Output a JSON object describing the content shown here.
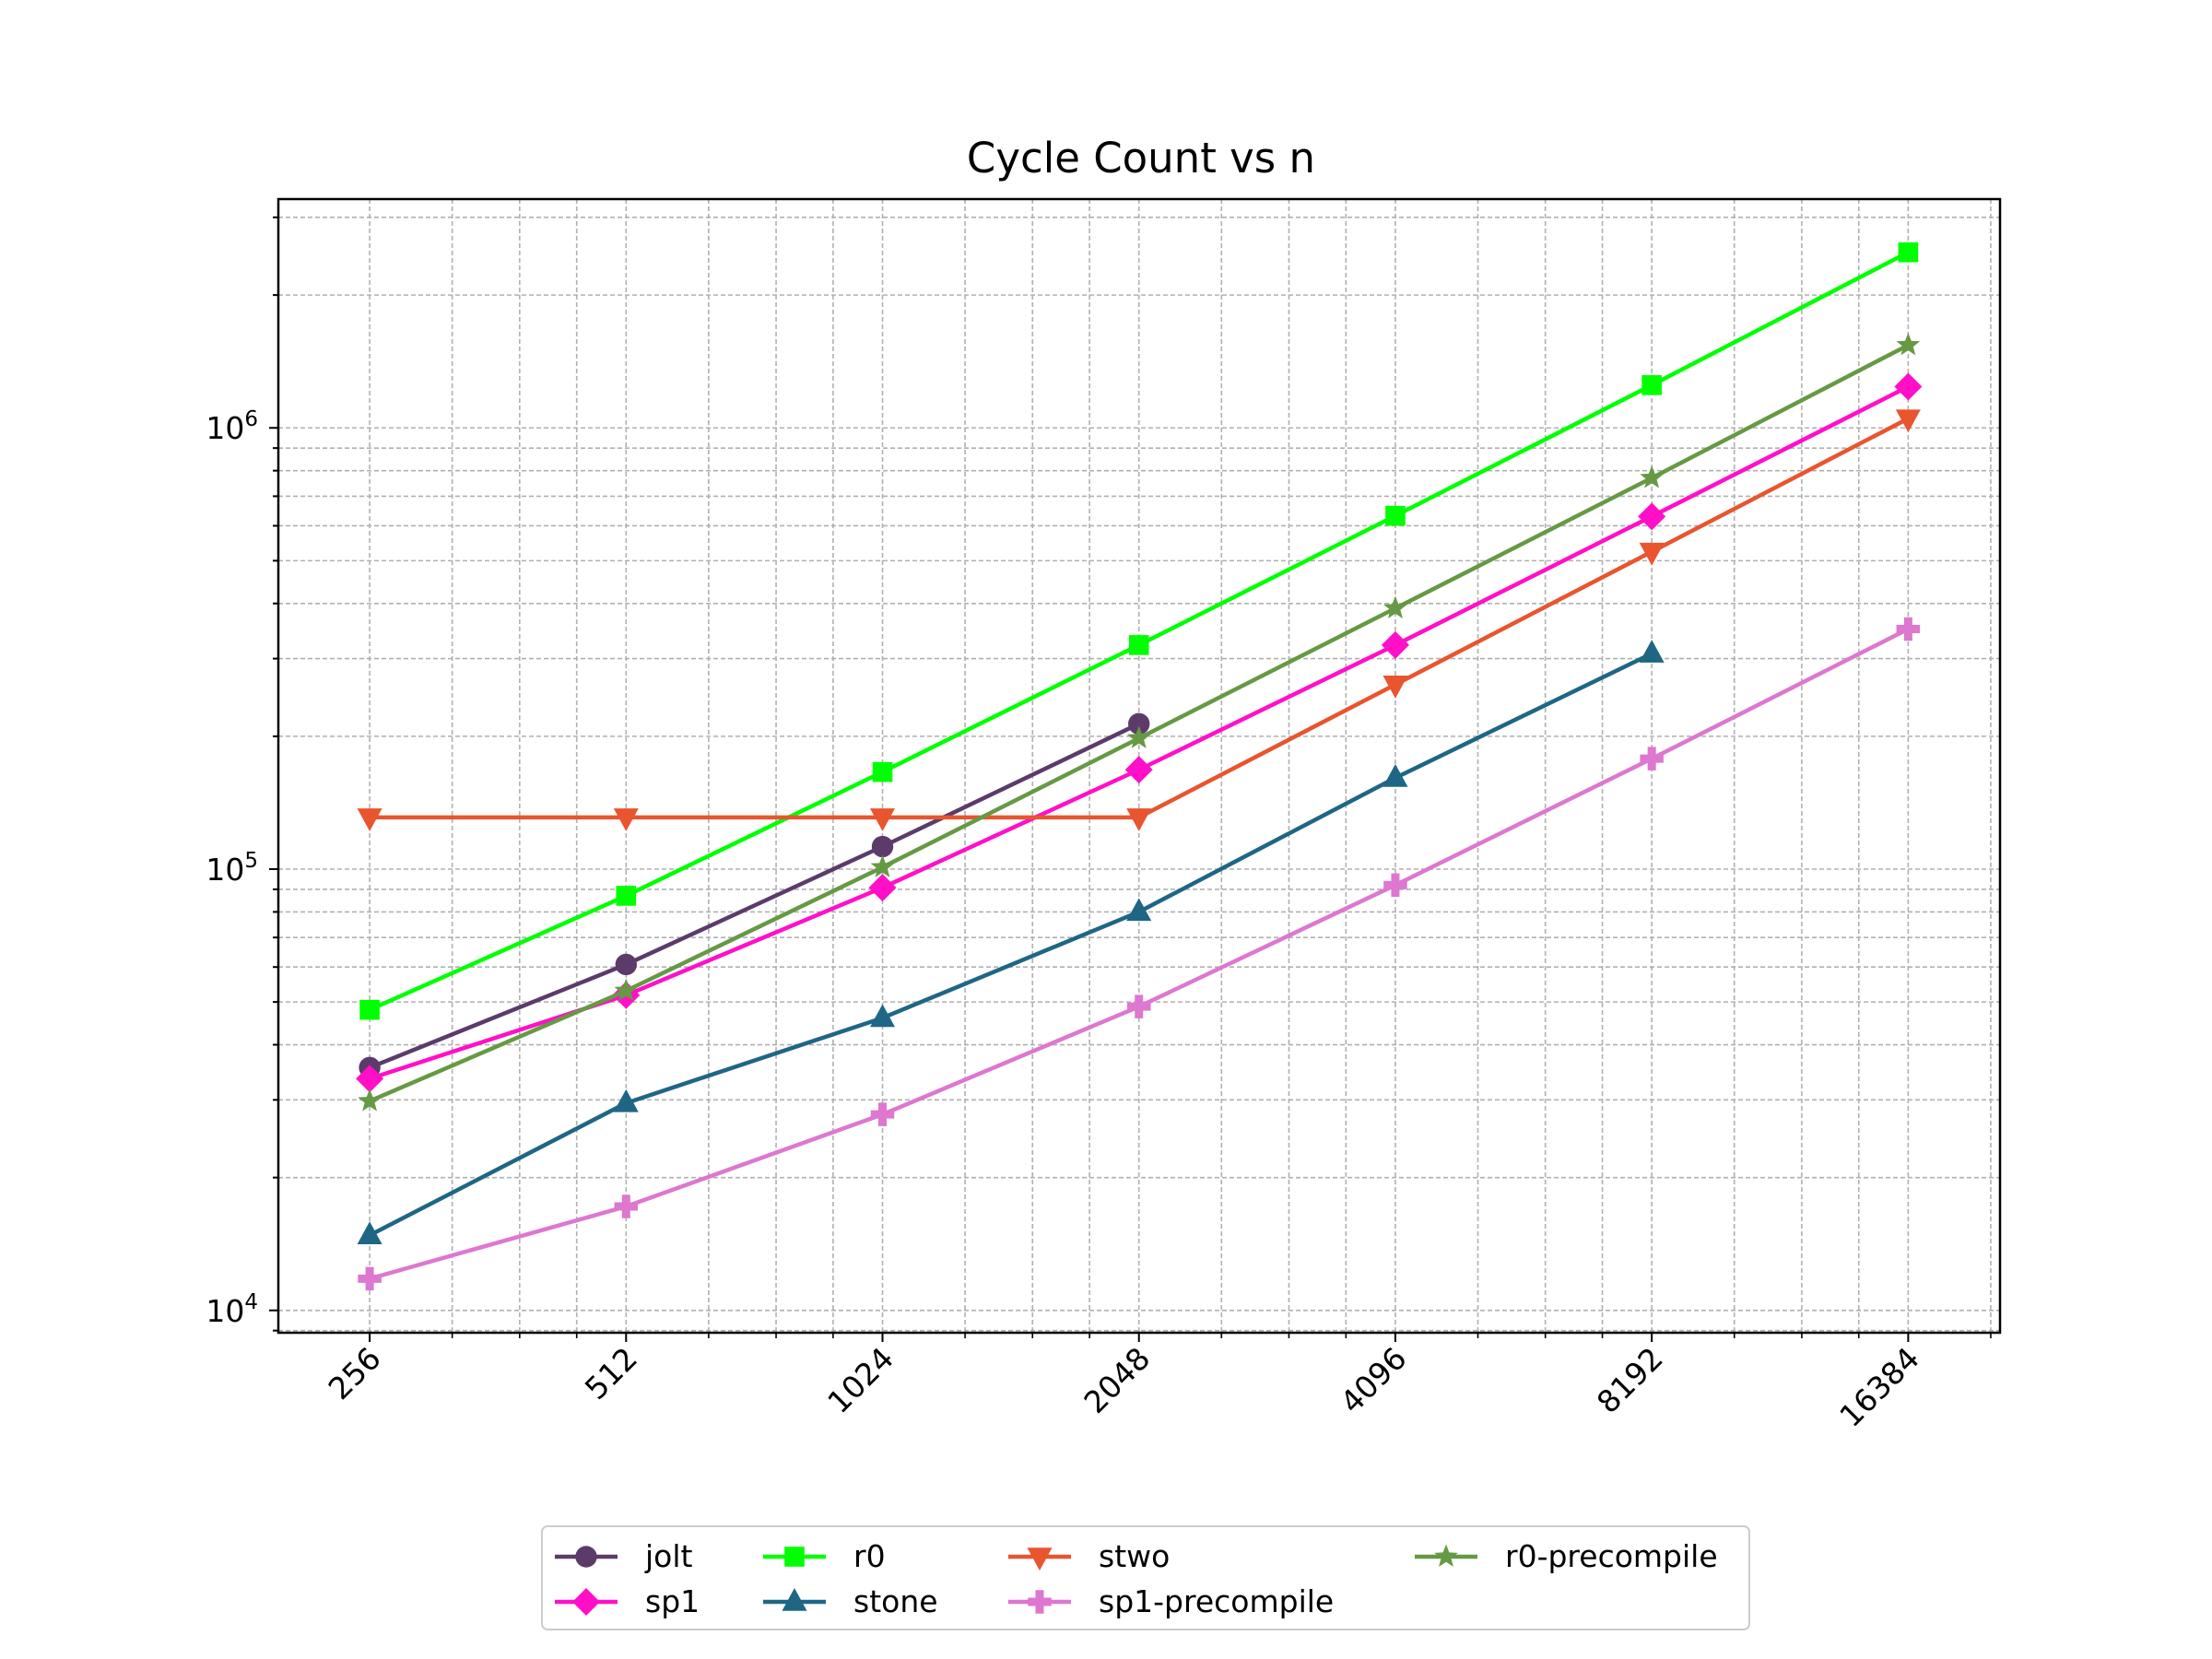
{
  "chart_data": {
    "type": "line",
    "title": "Cycle Count vs n",
    "xlabel": "",
    "ylabel": "",
    "x_scale": "log2",
    "y_scale": "log",
    "x": [
      256,
      512,
      1024,
      2048,
      4096,
      8192,
      16384
    ],
    "x_tick_labels": [
      "256",
      "512",
      "1024",
      "2048",
      "4096",
      "8192",
      "16384"
    ],
    "y_ticks": [
      {
        "value": 10000,
        "base": "10",
        "exp": "4"
      },
      {
        "value": 100000,
        "base": "10",
        "exp": "5"
      },
      {
        "value": 1000000,
        "base": "10",
        "exp": "6"
      }
    ],
    "xlim": [
      200,
      21000
    ],
    "ylim": [
      8900,
      3300000
    ],
    "grid": true,
    "legend_position": "bottom-center",
    "series": [
      {
        "name": "jolt",
        "color": "#5c3b6b",
        "marker": "circle",
        "values": [
          35500,
          60800,
          112500,
          213500,
          null,
          null,
          null
        ]
      },
      {
        "name": "sp1",
        "color": "#ff10c8",
        "marker": "diamond",
        "values": [
          33500,
          51800,
          90800,
          168000,
          322000,
          630000,
          1240000
        ]
      },
      {
        "name": "r0",
        "color": "#00ff00",
        "marker": "square",
        "values": [
          48000,
          87000,
          166000,
          322000,
          632000,
          1250000,
          2500000
        ]
      },
      {
        "name": "stone",
        "color": "#1f6685",
        "marker": "triangle-up",
        "values": [
          14800,
          29500,
          46000,
          80000,
          161000,
          308000,
          null
        ]
      },
      {
        "name": "stwo",
        "color": "#e8552e",
        "marker": "triangle-down",
        "values": [
          131000,
          131000,
          131000,
          131000,
          262000,
          524000,
          1050000
        ]
      },
      {
        "name": "sp1-precompile",
        "color": "#dd77d0",
        "marker": "plus",
        "values": [
          11800,
          17200,
          27800,
          48800,
          92000,
          178000,
          350000
        ]
      },
      {
        "name": "r0-precompile",
        "color": "#669944",
        "marker": "star",
        "values": [
          29800,
          53000,
          101000,
          198000,
          390000,
          770000,
          1540000
        ]
      }
    ]
  }
}
